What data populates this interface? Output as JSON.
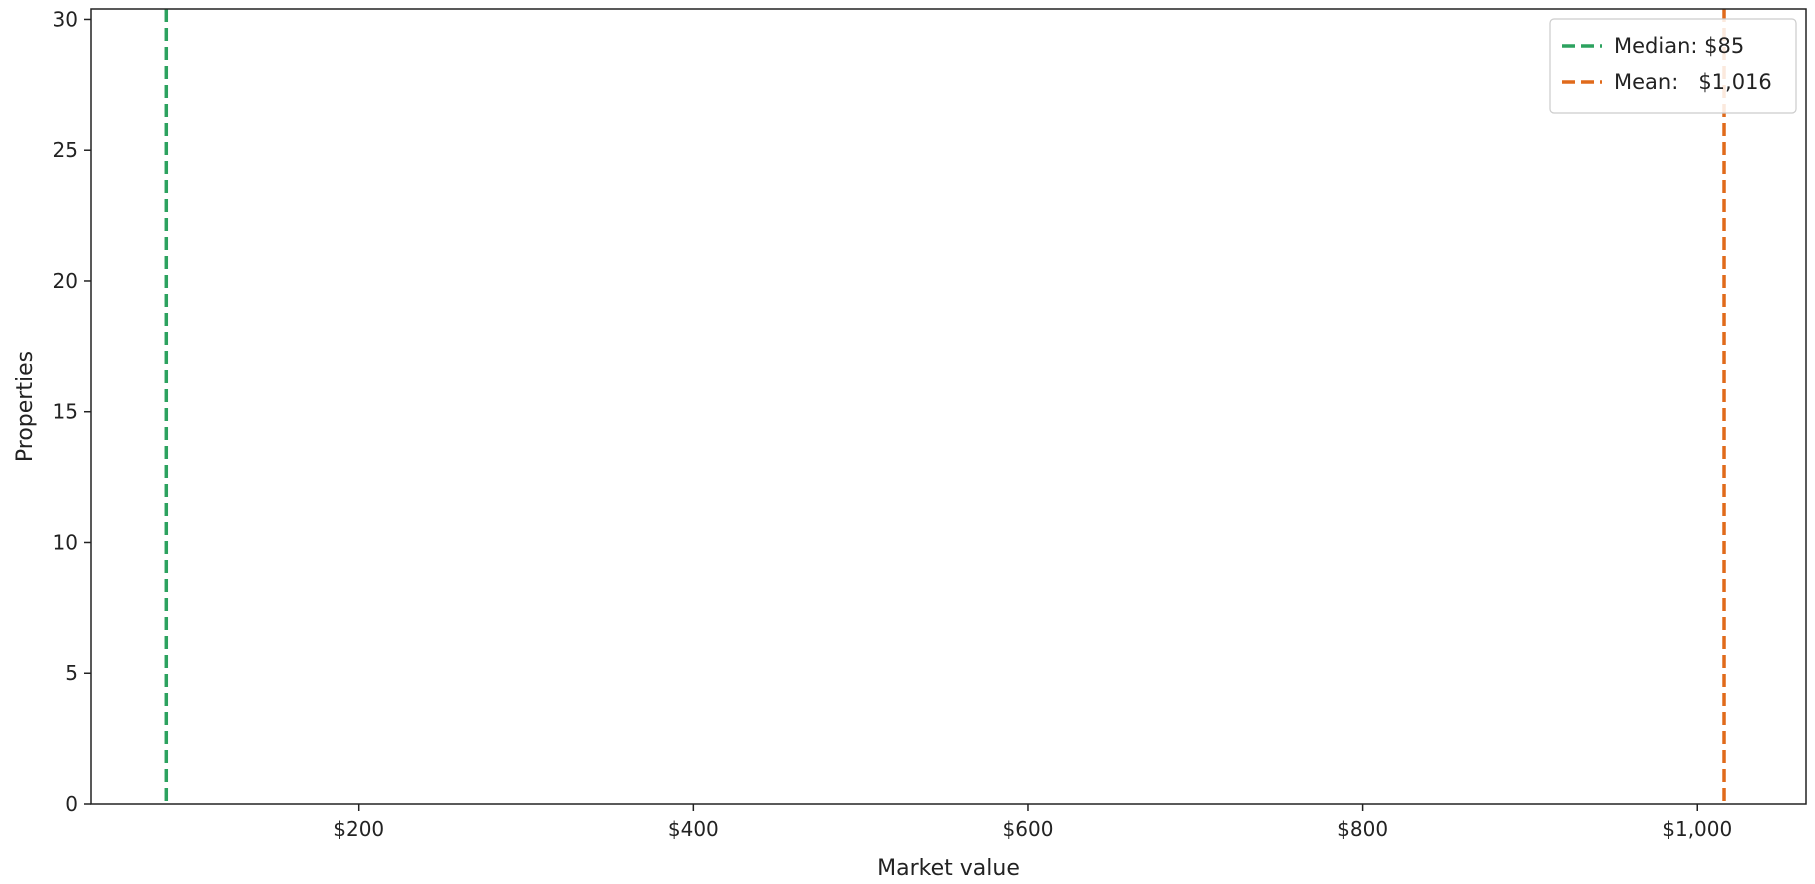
{
  "chart_data": {
    "type": "histogram",
    "title": "",
    "xlabel": "Market value",
    "ylabel": "Properties",
    "xlim": [
      40,
      1065
    ],
    "ylim": [
      0,
      30.4
    ],
    "x_ticks": [
      {
        "value": 200,
        "label": "$200"
      },
      {
        "value": 400,
        "label": "$400"
      },
      {
        "value": 600,
        "label": "$600"
      },
      {
        "value": 800,
        "label": "$800"
      },
      {
        "value": 1000,
        "label": "$1,000"
      }
    ],
    "y_ticks": [
      {
        "value": 0,
        "label": "0"
      },
      {
        "value": 5,
        "label": "5"
      },
      {
        "value": 10,
        "label": "10"
      },
      {
        "value": 15,
        "label": "15"
      },
      {
        "value": 20,
        "label": "20"
      },
      {
        "value": 25,
        "label": "25"
      },
      {
        "value": 30,
        "label": "30"
      }
    ],
    "grid": false,
    "bins": [],
    "reference_lines": [
      {
        "name": "Median",
        "value": 85,
        "label": "Median: $85",
        "color": "#2ca25f",
        "style": "dashed"
      },
      {
        "name": "Mean",
        "value": 1016,
        "label": "Mean:   $1,016",
        "color": "#e06a1b",
        "style": "dashed"
      }
    ],
    "legend": {
      "placement": "top-right"
    }
  }
}
